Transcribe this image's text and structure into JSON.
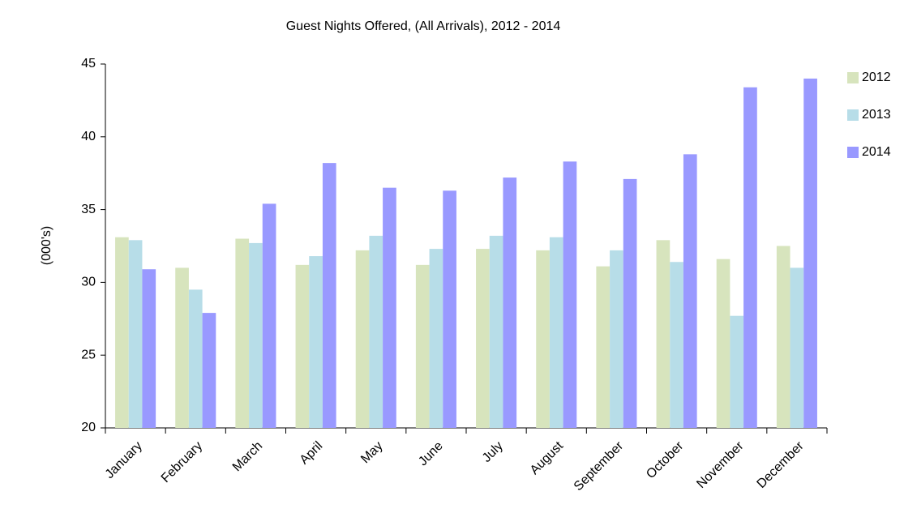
{
  "chart_data": {
    "type": "bar",
    "title": "Guest Nights Offered, (All Arrivals), 2012 - 2014",
    "y_label": "(000's)",
    "categories": [
      "January",
      "February",
      "March",
      "April",
      "May",
      "June",
      "July",
      "August",
      "September",
      "October",
      "November",
      "December"
    ],
    "series": [
      {
        "name": "2012",
        "color": "#d7e4bd",
        "values": [
          33.1,
          31.0,
          33.0,
          31.2,
          32.2,
          31.2,
          32.3,
          32.2,
          31.1,
          32.9,
          31.6,
          32.5
        ]
      },
      {
        "name": "2013",
        "color": "#b7dde8",
        "values": [
          32.9,
          29.5,
          32.7,
          31.8,
          33.2,
          32.3,
          33.2,
          33.1,
          32.2,
          31.4,
          27.7,
          31.0
        ]
      },
      {
        "name": "2014",
        "color": "#9999ff",
        "values": [
          30.9,
          27.9,
          35.4,
          38.2,
          36.5,
          36.3,
          37.2,
          38.3,
          37.1,
          38.8,
          43.4,
          44.0
        ]
      }
    ],
    "ylim": [
      20,
      45
    ],
    "yticks": [
      20,
      25,
      30,
      35,
      40,
      45
    ],
    "grid": false,
    "legend": "right"
  }
}
